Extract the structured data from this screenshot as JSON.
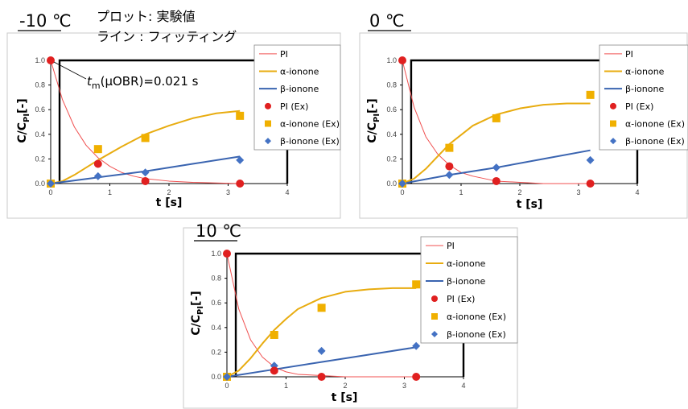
{
  "notes": {
    "line1": "プロット: 実験値",
    "line2": "ライン : フィッティング"
  },
  "legend": {
    "pi_fit": "PI",
    "alpha_fit": "α-ionone",
    "beta_fit": "β-ionone",
    "pi_ex": "PI (Ex)",
    "alpha_ex": "α-ionone (Ex)",
    "beta_ex": "β-ionone (Ex)"
  },
  "annotation": {
    "tm_base": "t",
    "tm_sub": "m",
    "tm_rest": "(μOBR)=0.021 s"
  },
  "colors": {
    "pi": "#e02020",
    "pi_line": "#f05050",
    "alpha": "#f0b000",
    "alpha_line": "#e8ac10",
    "beta": "#4472c4",
    "beta_line": "#3a64b0"
  },
  "chart_data": [
    {
      "type": "scatter",
      "panel": "m10",
      "title": "-10 ℃",
      "xlabel": "t [s]",
      "ylabel": "C/C_PI [-]",
      "xlim": [
        0,
        4
      ],
      "ylim": [
        0,
        1.0
      ],
      "xticks": [
        "0",
        "1",
        "2",
        "3",
        "4"
      ],
      "yticks": [
        "0.0",
        "0.2",
        "0.4",
        "0.6",
        "0.8",
        "1.0"
      ],
      "step_x": 0.15,
      "series": [
        {
          "name": "PI (Ex)",
          "x": [
            0,
            0.8,
            1.6,
            3.2
          ],
          "y": [
            1.0,
            0.16,
            0.02,
            0.0
          ]
        },
        {
          "name": "α-ionone (Ex)",
          "x": [
            0,
            0.8,
            1.6,
            3.2
          ],
          "y": [
            0.0,
            0.28,
            0.37,
            0.55
          ]
        },
        {
          "name": "β-ionone (Ex)",
          "x": [
            0,
            0.8,
            1.6,
            3.2
          ],
          "y": [
            0.0,
            0.06,
            0.09,
            0.19
          ]
        }
      ],
      "fits": {
        "pi": {
          "x": [
            0,
            0.2,
            0.4,
            0.6,
            0.8,
            1.0,
            1.2,
            1.4,
            1.6,
            2.0,
            2.4,
            3.2
          ],
          "y": [
            1.0,
            0.68,
            0.46,
            0.31,
            0.21,
            0.14,
            0.09,
            0.06,
            0.04,
            0.02,
            0.01,
            0.0
          ]
        },
        "alpha": {
          "x": [
            0,
            0.2,
            0.4,
            0.8,
            1.2,
            1.6,
            2.0,
            2.4,
            2.8,
            3.2
          ],
          "y": [
            0.0,
            0.02,
            0.07,
            0.19,
            0.3,
            0.4,
            0.47,
            0.53,
            0.57,
            0.59
          ]
        },
        "beta": {
          "x": [
            0,
            0.8,
            1.6,
            2.4,
            3.2
          ],
          "y": [
            0.0,
            0.05,
            0.1,
            0.16,
            0.22
          ]
        }
      }
    },
    {
      "type": "scatter",
      "panel": "0",
      "title": "0 ℃",
      "xlabel": "t [s]",
      "ylabel": "C/C_PI [-]",
      "xlim": [
        0,
        4
      ],
      "ylim": [
        0,
        1.0
      ],
      "xticks": [
        "0",
        "1",
        "2",
        "3",
        "4"
      ],
      "yticks": [
        "0.0",
        "0.2",
        "0.4",
        "0.6",
        "0.8",
        "1.0"
      ],
      "step_x": 0.15,
      "series": [
        {
          "name": "PI (Ex)",
          "x": [
            0,
            0.8,
            1.6,
            3.2
          ],
          "y": [
            1.0,
            0.14,
            0.02,
            0.0
          ]
        },
        {
          "name": "α-ionone (Ex)",
          "x": [
            0,
            0.8,
            1.6,
            3.2
          ],
          "y": [
            0.0,
            0.29,
            0.53,
            0.72
          ]
        },
        {
          "name": "β-ionone (Ex)",
          "x": [
            0,
            0.8,
            1.6,
            3.2
          ],
          "y": [
            0.0,
            0.07,
            0.13,
            0.19
          ]
        }
      ],
      "fits": {
        "pi": {
          "x": [
            0,
            0.2,
            0.4,
            0.6,
            0.8,
            1.0,
            1.2,
            1.6,
            2.0,
            2.4,
            3.2
          ],
          "y": [
            1.0,
            0.62,
            0.38,
            0.24,
            0.15,
            0.09,
            0.06,
            0.02,
            0.01,
            0.0,
            0.0
          ]
        },
        "alpha": {
          "x": [
            0,
            0.2,
            0.4,
            0.6,
            0.8,
            1.2,
            1.6,
            2.0,
            2.4,
            2.8,
            3.2
          ],
          "y": [
            0.0,
            0.04,
            0.12,
            0.22,
            0.32,
            0.47,
            0.56,
            0.61,
            0.64,
            0.65,
            0.65
          ]
        },
        "beta": {
          "x": [
            0,
            0.8,
            1.6,
            2.4,
            3.2
          ],
          "y": [
            0.0,
            0.07,
            0.13,
            0.2,
            0.27
          ]
        }
      }
    },
    {
      "type": "scatter",
      "panel": "10",
      "title": "10 ℃",
      "xlabel": "t [s]",
      "ylabel": "C/C_PI [-]",
      "xlim": [
        0,
        4
      ],
      "ylim": [
        0,
        1.0
      ],
      "xticks": [
        "0",
        "1",
        "2",
        "3",
        "4"
      ],
      "yticks": [
        "0.0",
        "0.2",
        "0.4",
        "0.6",
        "0.8",
        "1.0"
      ],
      "step_x": 0.15,
      "series": [
        {
          "name": "PI (Ex)",
          "x": [
            0,
            0.8,
            1.6,
            3.2
          ],
          "y": [
            1.0,
            0.05,
            0.0,
            0.0
          ]
        },
        {
          "name": "α-ionone (Ex)",
          "x": [
            0,
            0.8,
            1.6,
            3.2
          ],
          "y": [
            0.0,
            0.34,
            0.56,
            0.75
          ]
        },
        {
          "name": "β-ionone (Ex)",
          "x": [
            0,
            0.8,
            1.6,
            3.2
          ],
          "y": [
            0.0,
            0.09,
            0.21,
            0.25
          ]
        }
      ],
      "fits": {
        "pi": {
          "x": [
            0,
            0.2,
            0.4,
            0.6,
            0.8,
            1.0,
            1.2,
            1.6,
            2.0,
            3.2
          ],
          "y": [
            1.0,
            0.55,
            0.3,
            0.16,
            0.08,
            0.04,
            0.02,
            0.01,
            0.0,
            0.0
          ]
        },
        "alpha": {
          "x": [
            0,
            0.2,
            0.4,
            0.6,
            0.8,
            1.0,
            1.2,
            1.6,
            2.0,
            2.4,
            2.8,
            3.2
          ],
          "y": [
            0.0,
            0.05,
            0.15,
            0.27,
            0.38,
            0.47,
            0.55,
            0.64,
            0.69,
            0.71,
            0.72,
            0.72
          ]
        },
        "beta": {
          "x": [
            0,
            0.8,
            1.6,
            2.4,
            3.2
          ],
          "y": [
            0.0,
            0.06,
            0.12,
            0.18,
            0.24
          ]
        }
      }
    }
  ]
}
